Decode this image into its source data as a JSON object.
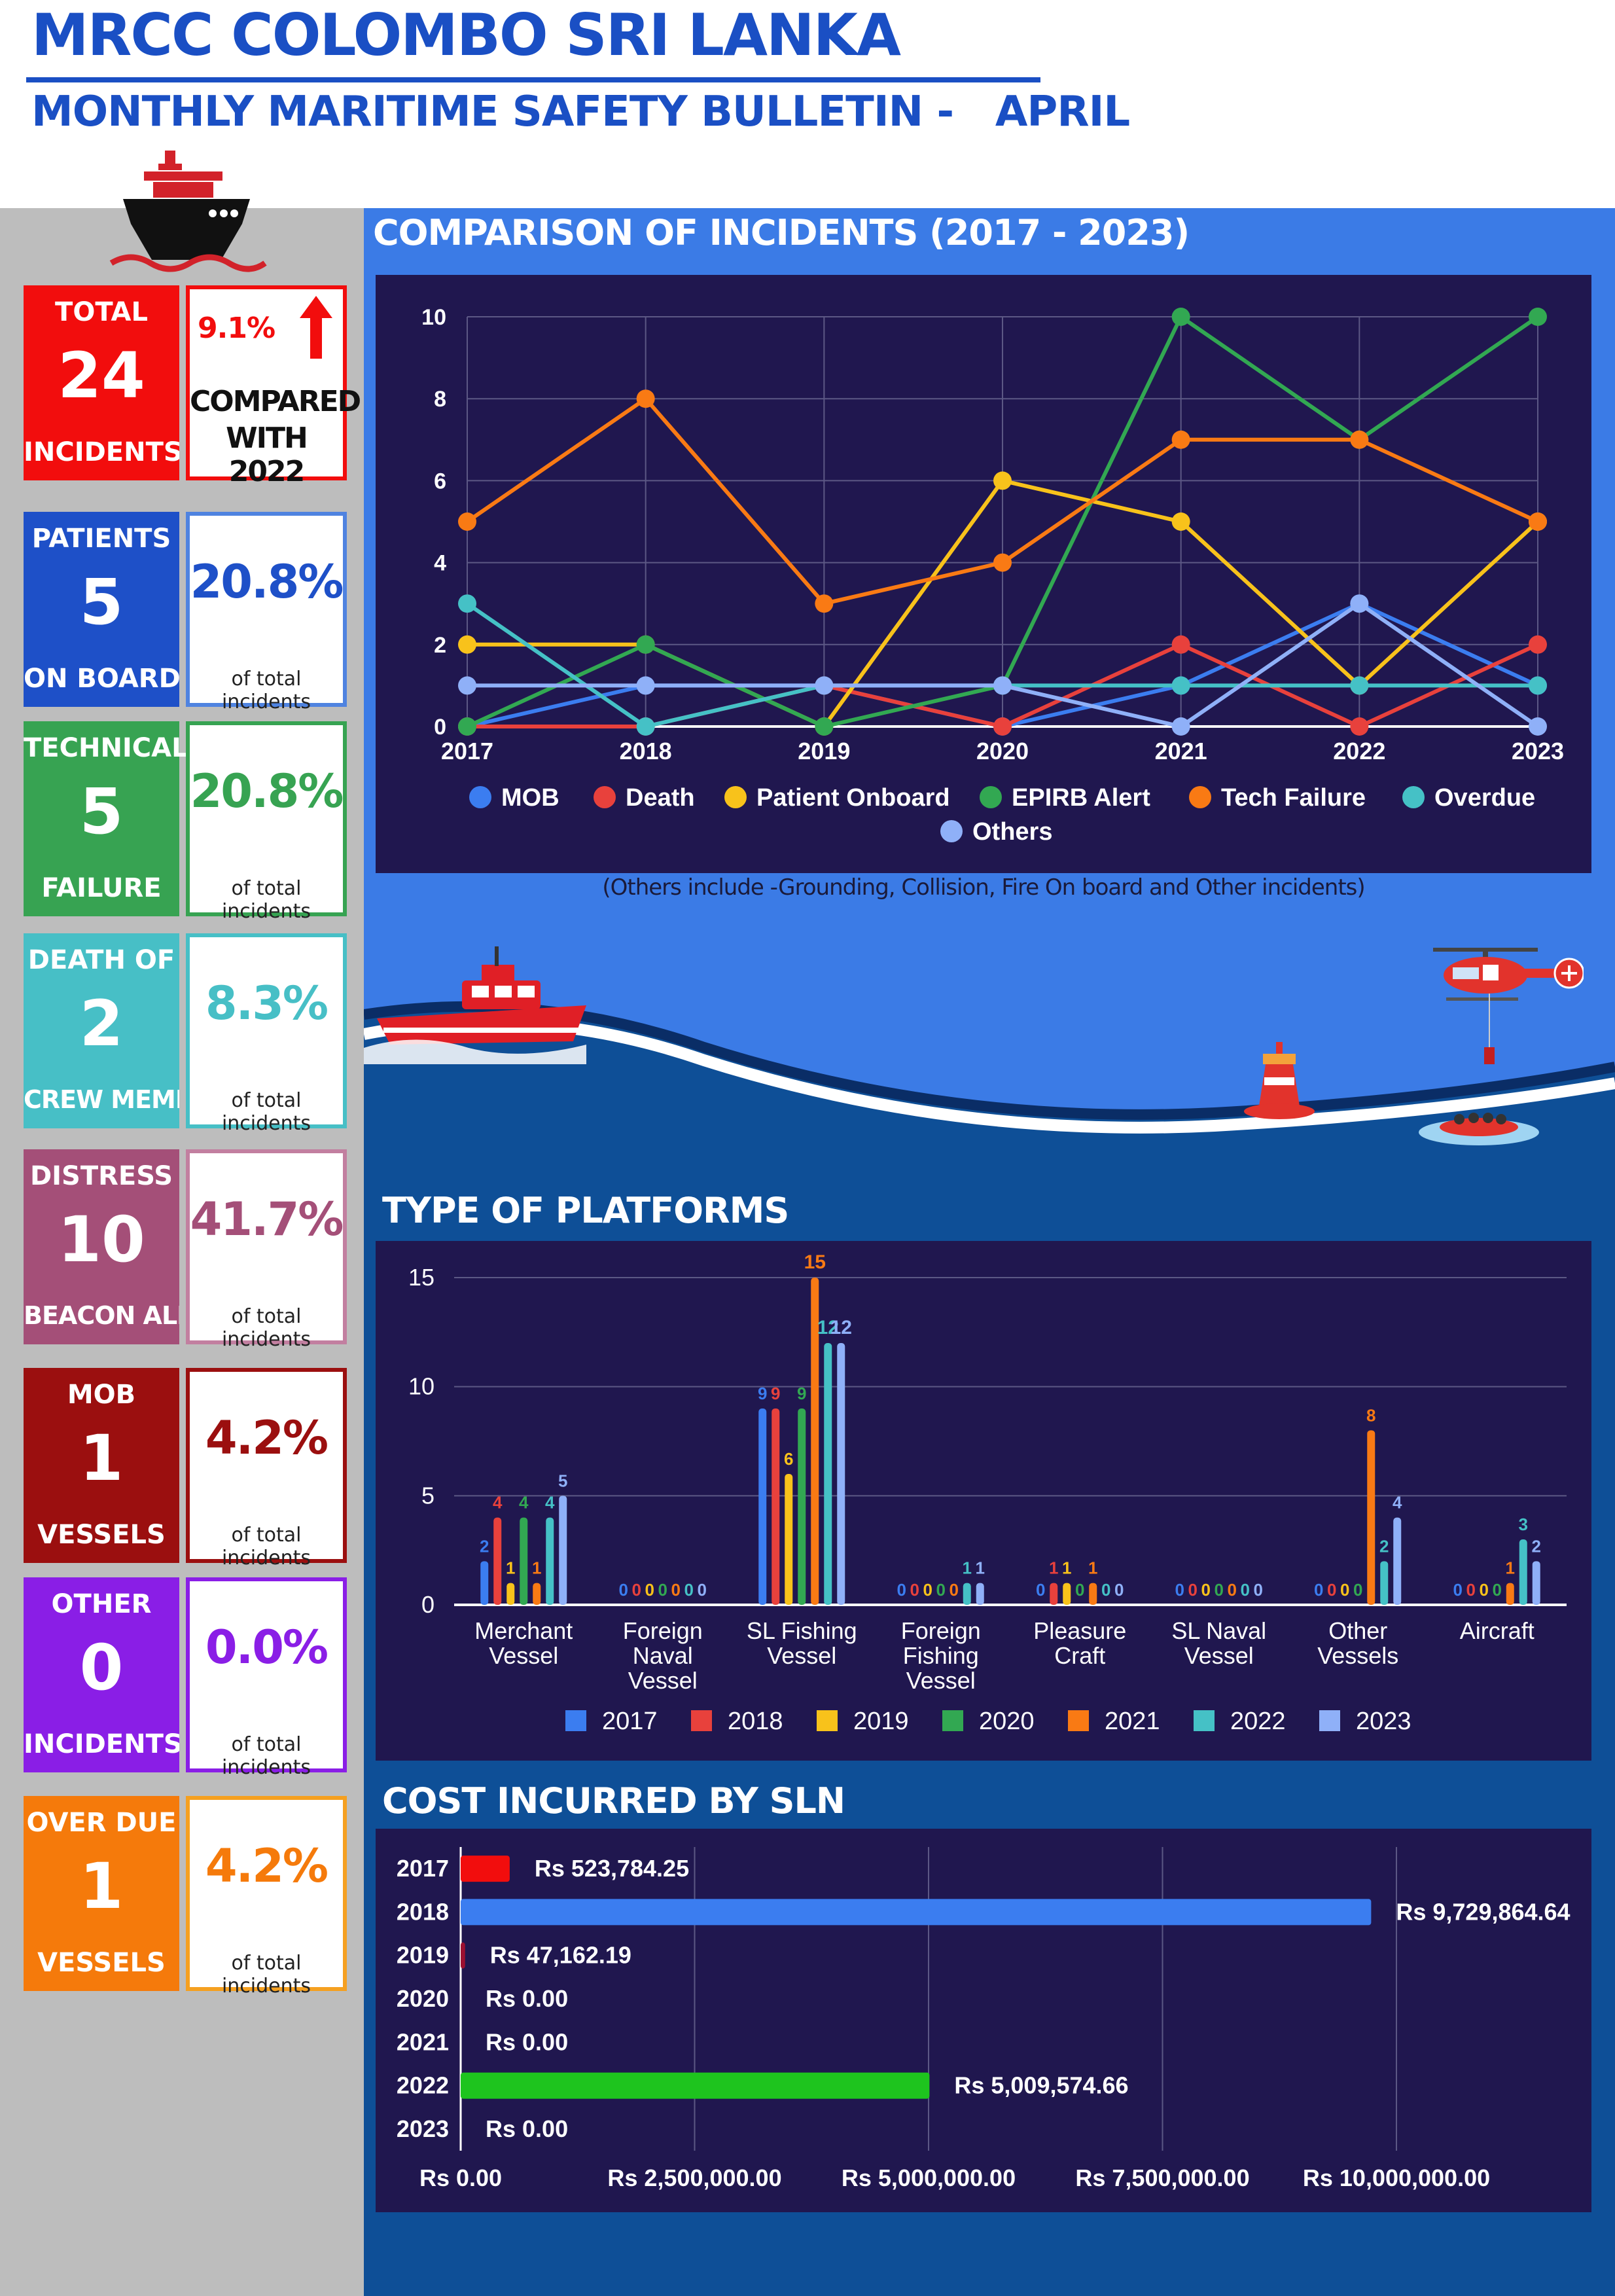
{
  "header": {
    "title": "MRCC COLOMBO SRI LANKA",
    "subtitle": "MONTHLY MARITIME SAFETY BULLETIN -   APRIL"
  },
  "total": {
    "label_top": "TOTAL",
    "value": "24",
    "label_bottom": "INCIDENTS",
    "change_pct": "9.1%",
    "change_text_1": "COMPARED",
    "change_text_2": "WITH 2022"
  },
  "stats": [
    {
      "label_top": "PATIENTS",
      "value": "5",
      "label_bottom": "ON BOARD",
      "pct": "20.8%",
      "sub": "of total incidents",
      "color": "#1e50c8"
    },
    {
      "label_top": "TECHNICAL",
      "value": "5",
      "label_bottom": "FAILURE",
      "pct": "20.8%",
      "sub": "of total incidents",
      "color": "#37a352"
    },
    {
      "label_top": "DEATH OF",
      "value": "2",
      "label_bottom": "CREW MEMBER",
      "pct": "8.3%",
      "sub": "of total incidents",
      "color": "#47bfc6"
    },
    {
      "label_top": "DISTRESS",
      "value": "10",
      "label_bottom": "BEACON ALERT",
      "pct": "41.7%",
      "sub": "of total incidents",
      "color": "#a44f78"
    },
    {
      "label_top": "MOB",
      "value": "1",
      "label_bottom": "VESSELS",
      "pct": "4.2%",
      "sub": "of total incidents",
      "color": "#9b0f0f"
    },
    {
      "label_top": "OTHER",
      "value": "0",
      "label_bottom": "INCIDENTS",
      "pct": "0.0%",
      "sub": "of total incidents",
      "color": "#8a1ee6"
    },
    {
      "label_top": "OVER DUE",
      "value": "1",
      "label_bottom": "VESSELS",
      "pct": "4.2%",
      "sub": "of total incidents",
      "color": "#f57a0b"
    }
  ],
  "colors": {
    "total": "#f20d0d",
    "panel": "#20174f",
    "upper_background": "#3b7be6",
    "lower_background": "#0e4f97"
  },
  "icons": [
    "ship-icon",
    "up-arrow-icon",
    "rescue-boat-icon",
    "helicopter-icon",
    "buoy-icon",
    "life-raft-icon"
  ],
  "chart_data": [
    {
      "type": "line",
      "title": "COMPARISON OF INCIDENTS (2017 - 2023)",
      "x": [
        "2017",
        "2018",
        "2019",
        "2020",
        "2021",
        "2022",
        "2023"
      ],
      "ylim": [
        0,
        10
      ],
      "yticks": [
        "0",
        "2",
        "4",
        "6",
        "8",
        "10"
      ],
      "grid": true,
      "legend_placement": "bottom",
      "series": [
        {
          "name": "MOB",
          "color": "#3b7df0",
          "values": [
            0,
            1,
            1,
            0,
            1,
            3,
            1
          ]
        },
        {
          "name": "Death",
          "color": "#e8413c",
          "values": [
            0,
            0,
            1,
            0,
            2,
            0,
            2
          ]
        },
        {
          "name": "Patient Onboard",
          "color": "#f8c21b",
          "values": [
            2,
            2,
            0,
            6,
            5,
            1,
            5
          ]
        },
        {
          "name": "EPIRB Alert",
          "color": "#32a852",
          "values": [
            0,
            2,
            0,
            1,
            10,
            7,
            10
          ]
        },
        {
          "name": "Tech Failure",
          "color": "#f97a14",
          "values": [
            5,
            8,
            3,
            4,
            7,
            7,
            5
          ]
        },
        {
          "name": "Overdue",
          "color": "#45c1c6",
          "values": [
            3,
            0,
            1,
            1,
            1,
            1,
            1
          ]
        },
        {
          "name": "Others",
          "color": "#8fb0f8",
          "values": [
            1,
            1,
            1,
            1,
            0,
            3,
            0
          ]
        }
      ],
      "note": "(Others include -Grounding, Collision, Fire On board and Other incidents)"
    },
    {
      "type": "bar",
      "title": "TYPE OF PLATFORMS",
      "categories": [
        "Merchant\nVessel",
        "Foreign\nNaval\nVessel",
        "SL Fishing\nVessel",
        "Foreign\nFishing\nVessel",
        "Pleasure\nCraft",
        "SL Naval\nVessel",
        "Other\nVessels",
        "Aircraft"
      ],
      "ylim": [
        0,
        15
      ],
      "yticks": [
        "0",
        "5",
        "10",
        "15"
      ],
      "grid": true,
      "legend_placement": "bottom",
      "series": [
        {
          "name": "2017",
          "color": "#3b7df0",
          "values": [
            2,
            0,
            9,
            0,
            0,
            0,
            0,
            0
          ]
        },
        {
          "name": "2018",
          "color": "#e8413c",
          "values": [
            4,
            0,
            9,
            0,
            1,
            0,
            0,
            0
          ]
        },
        {
          "name": "2019",
          "color": "#f8c21b",
          "values": [
            1,
            0,
            6,
            0,
            1,
            0,
            0,
            0
          ]
        },
        {
          "name": "2020",
          "color": "#32a852",
          "values": [
            4,
            0,
            9,
            0,
            0,
            0,
            0,
            0
          ]
        },
        {
          "name": "2021",
          "color": "#f97a14",
          "values": [
            1,
            0,
            15,
            0,
            1,
            0,
            8,
            1
          ]
        },
        {
          "name": "2022",
          "color": "#45c1c6",
          "values": [
            4,
            0,
            12,
            1,
            0,
            0,
            2,
            3
          ]
        },
        {
          "name": "2023",
          "color": "#8fb0f8",
          "values": [
            5,
            0,
            12,
            1,
            0,
            0,
            4,
            2
          ]
        }
      ]
    },
    {
      "type": "bar",
      "orientation": "horizontal",
      "title": "COST INCURRED BY SLN",
      "categories": [
        "2017",
        "2018",
        "2019",
        "2020",
        "2021",
        "2022",
        "2023"
      ],
      "values": [
        523784.25,
        9729864.64,
        47162.19,
        0,
        0,
        5009574.66,
        0
      ],
      "value_labels": [
        "Rs 523,784.25",
        "Rs 9,729,864.64",
        "Rs 47,162.19",
        "Rs 0.00",
        "Rs 0.00",
        "Rs 5,009,574.66",
        "Rs 0.00"
      ],
      "colors": [
        "#f20d0d",
        "#3b7df0",
        "#9b1030",
        "#3b7df0",
        "#3b7df0",
        "#1ec41e",
        "#3b7df0"
      ],
      "xlim": [
        0,
        10000000
      ],
      "xticks": [
        "Rs 0.00",
        "Rs 2,500,000.00",
        "Rs 5,000,000.00",
        "Rs 7,500,000.00",
        "Rs 10,000,000.00"
      ],
      "grid": true
    }
  ]
}
